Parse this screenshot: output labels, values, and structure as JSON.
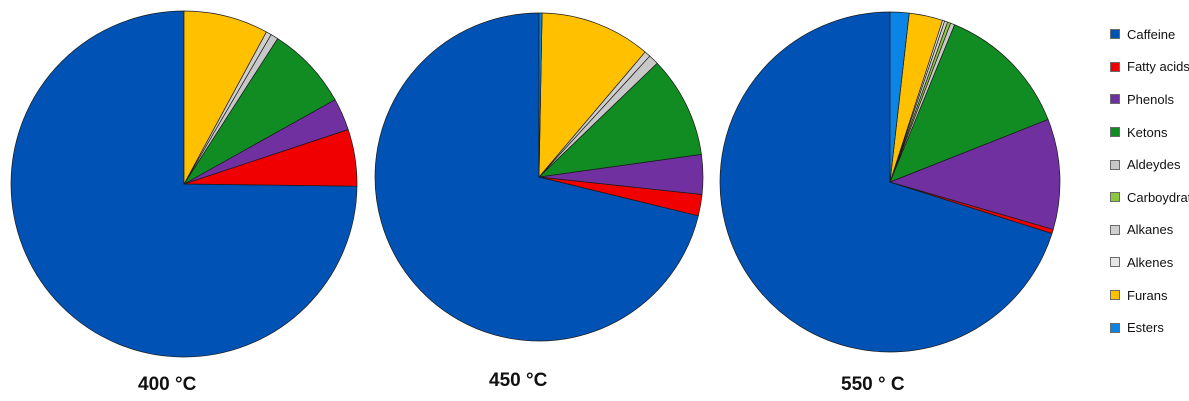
{
  "chart_data": {
    "type": "pie",
    "categories": [
      "Caffeine",
      "Fatty acids",
      "Phenols",
      "Ketons",
      "Aldeydes",
      "Carboydrates",
      "Alkanes",
      "Alkenes",
      "Furans",
      "Esters"
    ],
    "colors": [
      "#0052b4",
      "#f00000",
      "#7030a0",
      "#118c22",
      "#c8c8c8",
      "#8dc63f",
      "#cfcfcf",
      "#e6e6e6",
      "#ffc000",
      "#0a84e6"
    ],
    "legend_position": "right",
    "pies": [
      {
        "title": "400 °C",
        "values": [
          74.8,
          5.3,
          3.0,
          7.8,
          0.7,
          0.0,
          0.5,
          0.0,
          7.9,
          0.0
        ]
      },
      {
        "title": "450 °C",
        "values": [
          71.2,
          2.1,
          3.9,
          10.0,
          1.0,
          0.0,
          0.6,
          0.0,
          10.9,
          0.3
        ]
      },
      {
        "title": "550 ° C",
        "values": [
          70.1,
          0.4,
          10.5,
          12.8,
          0.4,
          0.3,
          0.3,
          0.2,
          3.2,
          1.8
        ]
      }
    ]
  }
}
